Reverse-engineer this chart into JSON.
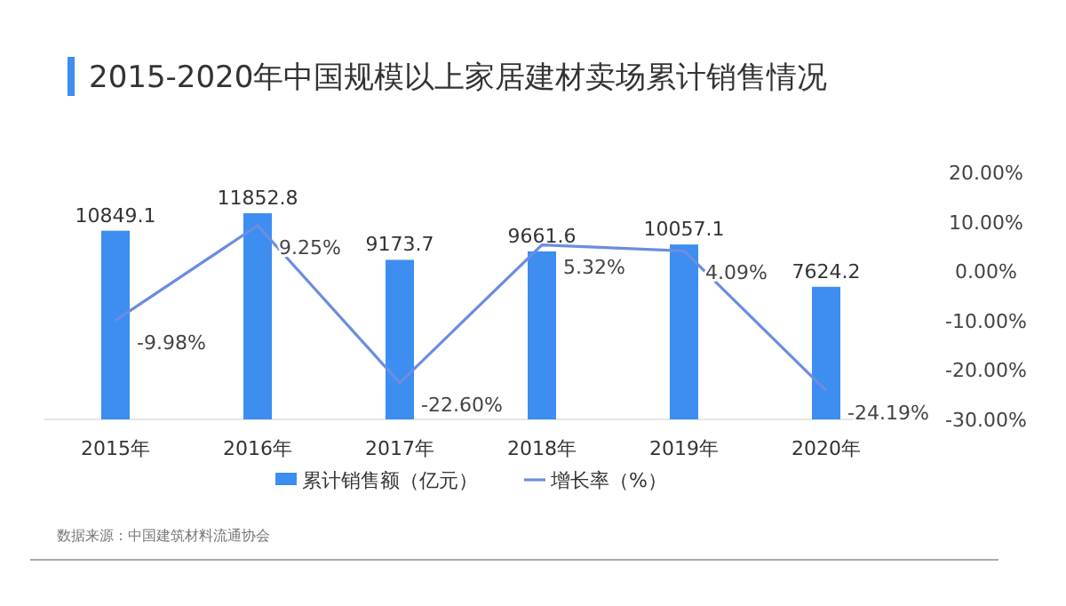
{
  "chart_data": {
    "type": "bar",
    "title": "2015-2020年中国规模以上家居建材卖场累计销售情况",
    "categories": [
      "2015年",
      "2016年",
      "2017年",
      "2018年",
      "2019年",
      "2020年"
    ],
    "series": [
      {
        "name": "累计销售额（亿元）",
        "color": "#3d8ef0",
        "values": [
          10849.1,
          11852.8,
          9173.7,
          9661.6,
          10057.1,
          7624.2
        ],
        "value_labels": [
          "10849.1",
          "11852.8",
          "9173.7",
          "9661.6",
          "10057.1",
          "7624.2"
        ]
      },
      {
        "name": "增长率（%）",
        "type": "line",
        "axis": "y2",
        "color": "#6b8de0",
        "values": [
          -9.98,
          9.25,
          -22.6,
          5.32,
          4.09,
          -24.19
        ],
        "value_labels": [
          "-9.98%",
          "9.25%",
          "-22.60%",
          "5.32%",
          "4.09%",
          "-24.19%"
        ]
      }
    ],
    "y2lim": [
      -30,
      20
    ],
    "y2ticks": [
      {
        "value": 20,
        "label": "20.00%"
      },
      {
        "value": 10,
        "label": "10.00%"
      },
      {
        "value": 0,
        "label": "0.00%"
      },
      {
        "value": -10,
        "label": "-10.00%"
      },
      {
        "value": -20,
        "label": "-20.00%"
      },
      {
        "value": -30,
        "label": "-30.00%"
      }
    ],
    "legend": "bottom",
    "marker": "none",
    "annotations": [
      "数据来源：中国建筑材料流通协会"
    ]
  }
}
